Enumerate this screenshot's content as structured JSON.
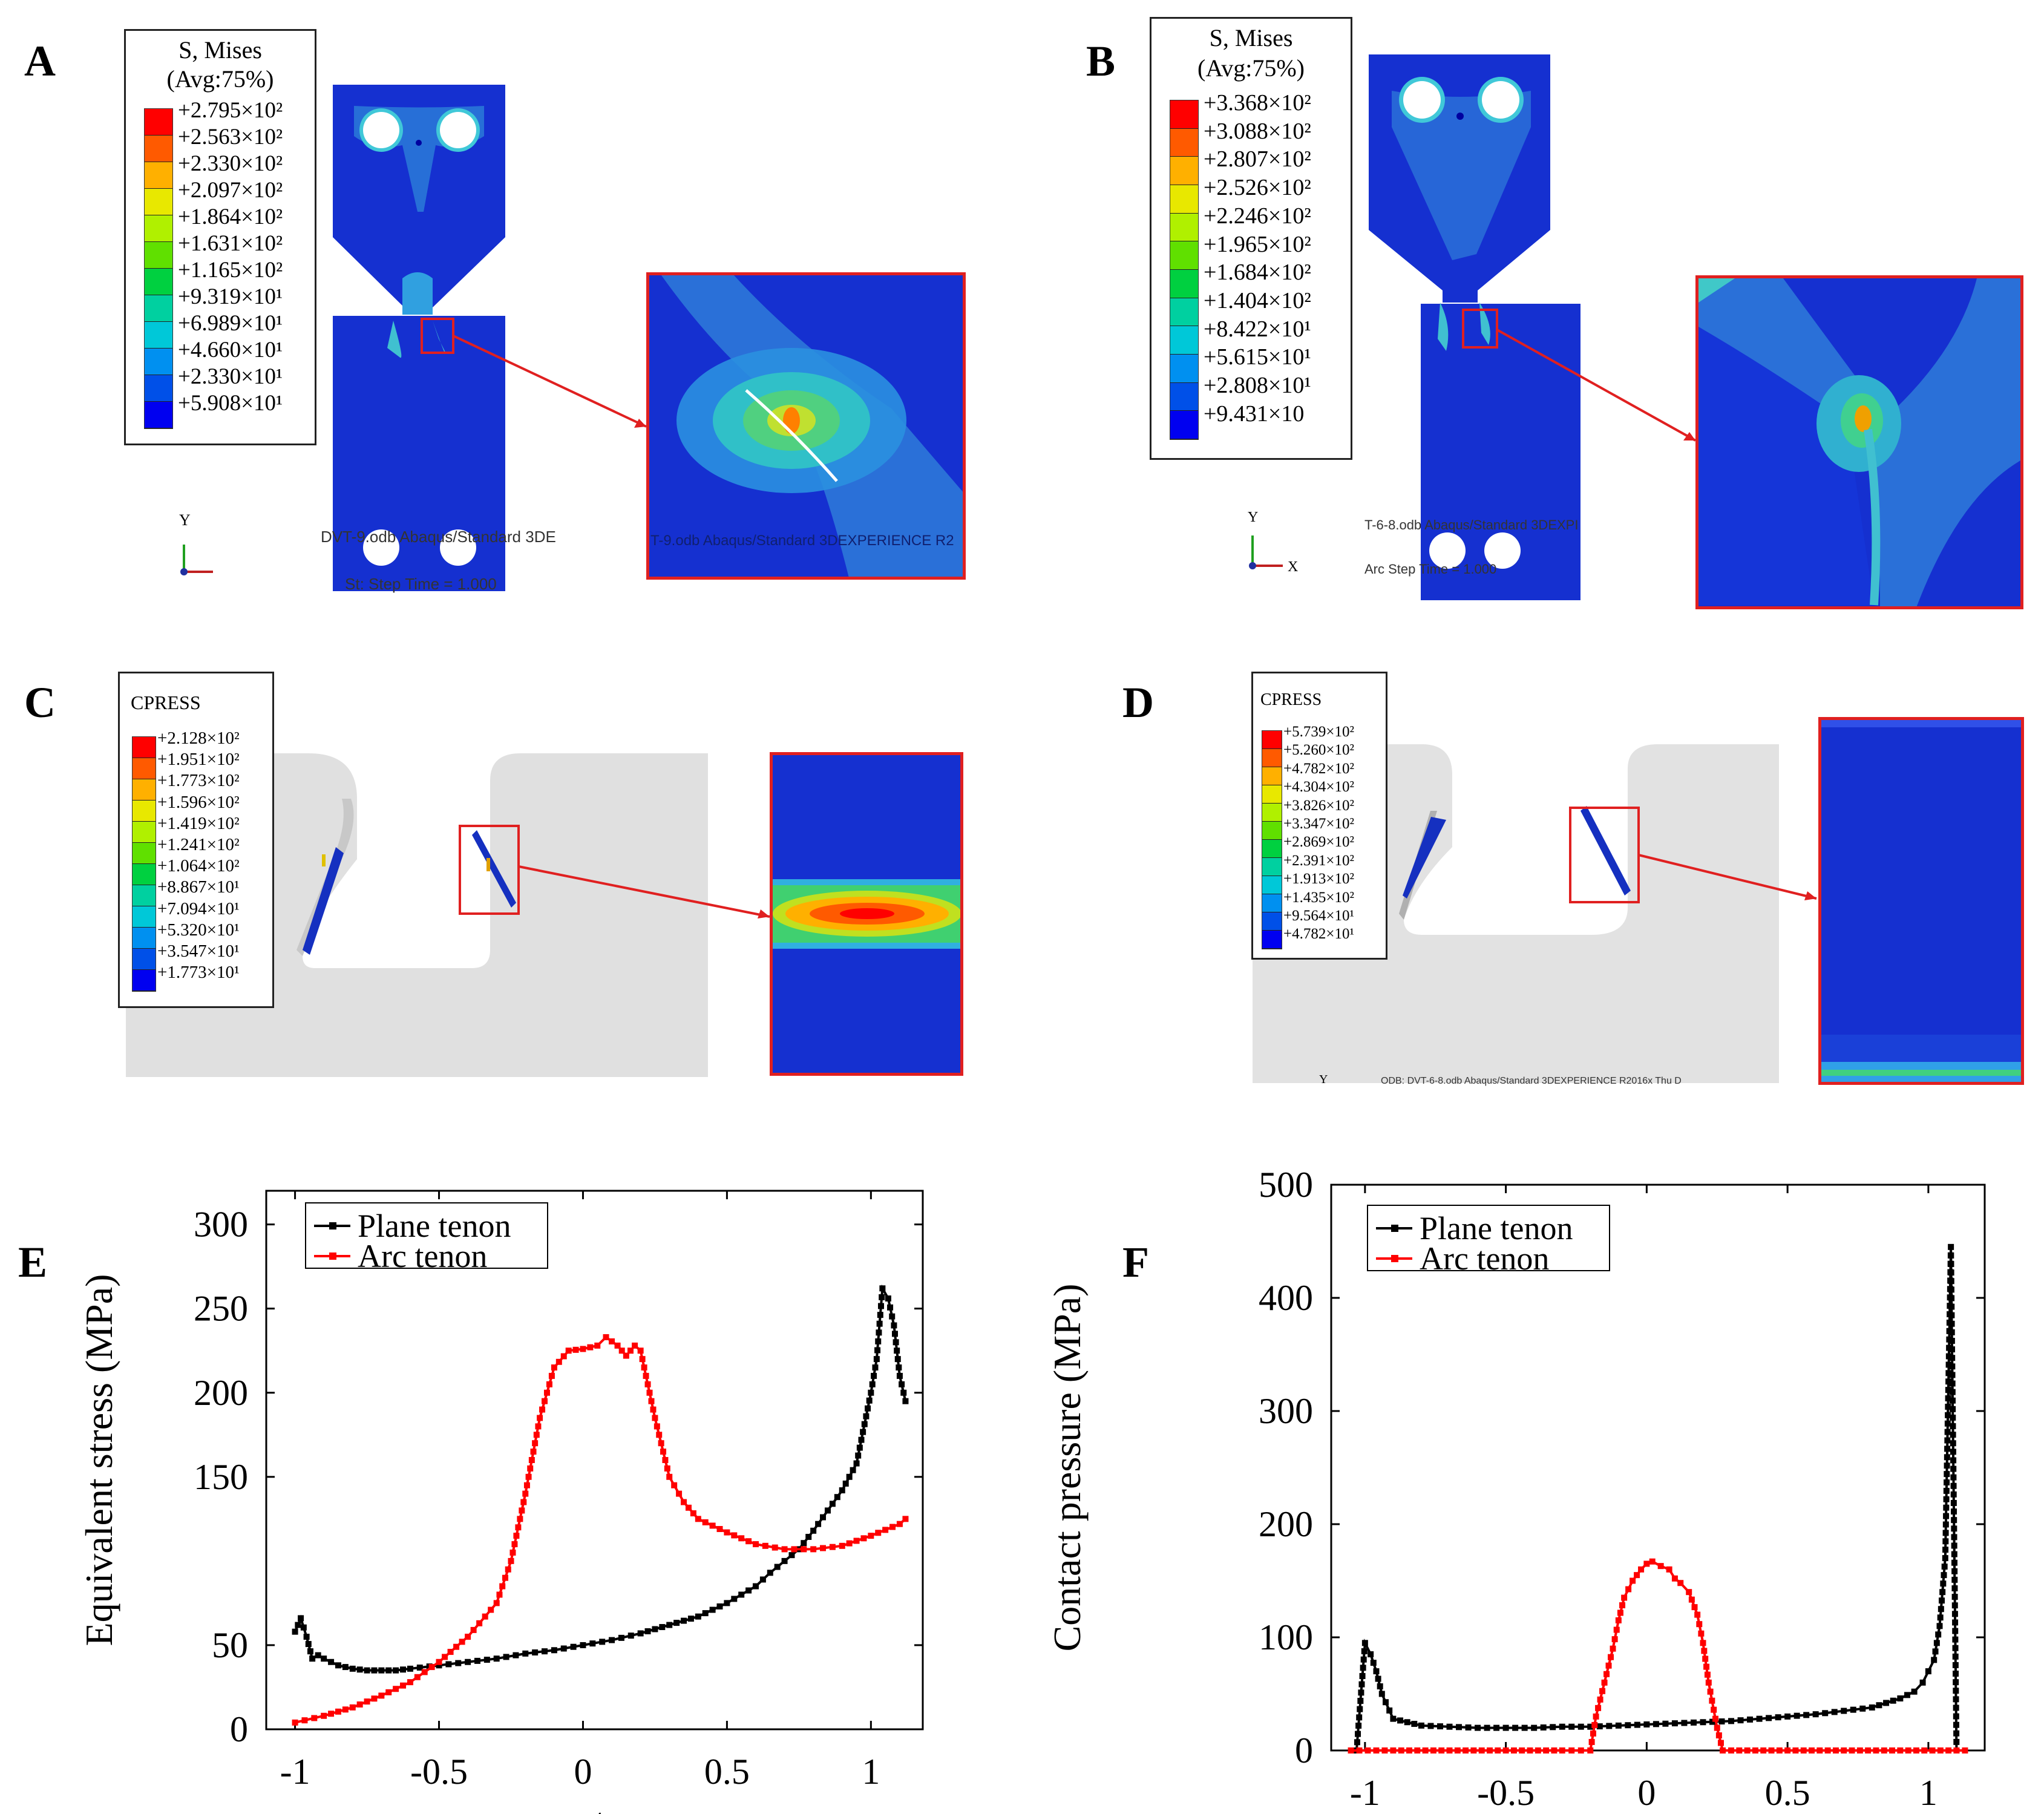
{
  "panels": {
    "A": {
      "label": "A",
      "legend_title_1": "S, Mises",
      "legend_title_2": "(Avg:75%)",
      "legend_values": [
        "+2.795×10²",
        "+2.563×10²",
        "+2.330×10²",
        "+2.097×10²",
        "+1.864×10²",
        "+1.631×10²",
        "+1.165×10²",
        "+9.319×10¹",
        "+6.989×10¹",
        "+4.660×10¹",
        "+2.330×10¹",
        "+5.908×10¹"
      ],
      "footer_1": "DVT-9.odb   Abaqus/Standard 3DE",
      "footer_2": "St: Step Time = 1.000",
      "zoom_footer": "T-9.odb   Abaqus/Standard 3DEXPERIENCE R2",
      "axis_y": "Y"
    },
    "B": {
      "label": "B",
      "legend_title_1": "S, Mises",
      "legend_title_2": "(Avg:75%)",
      "legend_values": [
        "+3.368×10²",
        "+3.088×10²",
        "+2.807×10²",
        "+2.526×10²",
        "+2.246×10²",
        "+1.965×10²",
        "+1.684×10²",
        "+1.404×10²",
        "+8.422×10¹",
        "+5.615×10¹",
        "+2.808×10¹",
        "+9.431×10"
      ],
      "footer_1": "T-6-8.odb   Abaqus/Standard 3DEXPI",
      "footer_2": "Arc Step Time = 1.000",
      "axis_y": "Y",
      "axis_x": "X"
    },
    "C": {
      "label": "C",
      "legend_title": "CPRESS",
      "legend_values": [
        "+2.128×10²",
        "+1.951×10²",
        "+1.773×10²",
        "+1.596×10²",
        "+1.419×10²",
        "+1.241×10²",
        "+1.064×10²",
        "+8.867×10¹",
        "+7.094×10¹",
        "+5.320×10¹",
        "+3.547×10¹",
        "+1.773×10¹"
      ]
    },
    "D": {
      "label": "D",
      "legend_title": "CPRESS",
      "legend_values": [
        "+5.739×10²",
        "+5.260×10²",
        "+4.782×10²",
        "+4.304×10²",
        "+3.826×10²",
        "+3.347×10²",
        "+2.869×10²",
        "+2.391×10²",
        "+1.913×10²",
        "+1.435×10²",
        "+9.564×10¹",
        "+4.782×10¹"
      ],
      "footer": "ODB: DVT-6-8.odb    Abaqus/Standard 3DEXPERIENCE R2016x    Thu D",
      "axis_y": "Y"
    },
    "E": {
      "label": "E"
    },
    "F": {
      "label": "F"
    }
  },
  "legend_colors_stress": [
    "#ff0000",
    "#ff5a00",
    "#ffb000",
    "#e8e800",
    "#b0f000",
    "#60e000",
    "#00d040",
    "#00d0a0",
    "#00c8d8",
    "#0090f0",
    "#0050e8",
    "#0000f0"
  ],
  "legend_colors_cpress": [
    "#ff0000",
    "#ff5a00",
    "#ffb000",
    "#e8e800",
    "#b0f000",
    "#60e000",
    "#00d040",
    "#00d0a0",
    "#00c8d8",
    "#0090f0",
    "#0050e8",
    "#0000f0"
  ],
  "chart_data": [
    {
      "type": "line",
      "panel": "E",
      "xlabel": "x/a",
      "ylabel": "Equivalent stress (MPa)",
      "xlim": [
        -1.1,
        1.18
      ],
      "ylim": [
        0,
        320
      ],
      "xticks": [
        -1,
        -0.5,
        0,
        0.5,
        1
      ],
      "xtick_labels": [
        "-1",
        "-0.5",
        "0",
        "0.5",
        "1"
      ],
      "yticks": [
        0,
        50,
        150,
        200,
        250,
        300
      ],
      "ytick_labels": [
        "0",
        "50",
        "150",
        "200",
        "250",
        "300"
      ],
      "legend": [
        "Plane tenon",
        "Arc tenon"
      ],
      "series": [
        {
          "name": "Plane tenon",
          "color": "#000000",
          "x": [
            -1.0,
            -0.98,
            -0.96,
            -0.94,
            -0.92,
            -0.9,
            -0.85,
            -0.8,
            -0.75,
            -0.7,
            -0.65,
            -0.6,
            -0.5,
            -0.4,
            -0.3,
            -0.2,
            -0.1,
            0.0,
            0.1,
            0.2,
            0.3,
            0.4,
            0.5,
            0.6,
            0.65,
            0.7,
            0.75,
            0.8,
            0.85,
            0.9,
            0.95,
            1.0,
            1.02,
            1.04,
            1.06,
            1.08,
            1.1,
            1.12
          ],
          "y": [
            58,
            66,
            55,
            42,
            44,
            42,
            38,
            36,
            35,
            35,
            35,
            36,
            38,
            40,
            42,
            45,
            47,
            50,
            53,
            57,
            62,
            67,
            75,
            85,
            93,
            100,
            107,
            118,
            130,
            142,
            158,
            200,
            220,
            262,
            256,
            240,
            210,
            195
          ]
        },
        {
          "name": "Arc tenon",
          "color": "#ff0000",
          "x": [
            -1.0,
            -0.9,
            -0.8,
            -0.7,
            -0.6,
            -0.5,
            -0.4,
            -0.3,
            -0.25,
            -0.2,
            -0.15,
            -0.1,
            -0.05,
            0.0,
            0.05,
            0.08,
            0.12,
            0.15,
            0.18,
            0.2,
            0.25,
            0.3,
            0.35,
            0.4,
            0.5,
            0.6,
            0.7,
            0.8,
            0.9,
            1.0,
            1.1,
            1.12
          ],
          "y": [
            4,
            8,
            13,
            20,
            28,
            40,
            55,
            75,
            100,
            140,
            185,
            215,
            225,
            226,
            228,
            233,
            228,
            222,
            228,
            225,
            185,
            150,
            135,
            125,
            117,
            110,
            107,
            107,
            109,
            115,
            122,
            125
          ]
        }
      ]
    },
    {
      "type": "line",
      "panel": "F",
      "xlabel": "x/a",
      "ylabel": "Contact pressure (MPa)",
      "xlim": [
        -1.12,
        1.2
      ],
      "ylim": [
        0,
        500
      ],
      "xticks": [
        -1,
        -0.5,
        0,
        0.5,
        1
      ],
      "xtick_labels": [
        "-1",
        "-0.5",
        "0",
        "0.5",
        "1"
      ],
      "yticks": [
        0,
        100,
        200,
        300,
        400,
        500
      ],
      "ytick_labels": [
        "0",
        "100",
        "200",
        "300",
        "400",
        "500"
      ],
      "legend": [
        "Plane tenon",
        "Arc tenon"
      ],
      "series": [
        {
          "name": "Plane tenon",
          "color": "#000000",
          "x": [
            -1.03,
            -1.0,
            -0.98,
            -0.96,
            -0.94,
            -0.9,
            -0.85,
            -0.8,
            -0.7,
            -0.6,
            -0.5,
            -0.4,
            -0.3,
            -0.2,
            -0.1,
            0.0,
            0.1,
            0.2,
            0.3,
            0.4,
            0.5,
            0.6,
            0.7,
            0.8,
            0.85,
            0.9,
            0.95,
            0.98,
            1.0,
            1.02,
            1.04,
            1.06,
            1.08,
            1.1
          ],
          "y": [
            0,
            95,
            85,
            70,
            50,
            28,
            25,
            22,
            21,
            20,
            20,
            20,
            21,
            21,
            22,
            23,
            24,
            25,
            26,
            28,
            30,
            32,
            35,
            38,
            42,
            46,
            52,
            60,
            70,
            80,
            110,
            170,
            445,
            0
          ]
        },
        {
          "name": "Arc tenon",
          "color": "#ff0000",
          "x": [
            -1.05,
            -0.9,
            -0.7,
            -0.5,
            -0.3,
            -0.2,
            -0.18,
            -0.15,
            -0.12,
            -0.1,
            -0.08,
            -0.05,
            -0.02,
            0.0,
            0.02,
            0.05,
            0.08,
            0.1,
            0.12,
            0.15,
            0.18,
            0.2,
            0.22,
            0.25,
            0.27,
            0.3,
            0.5,
            0.7,
            0.9,
            1.1,
            1.13
          ],
          "y": [
            0,
            0,
            0,
            0,
            0,
            0,
            30,
            60,
            90,
            115,
            135,
            150,
            160,
            165,
            167,
            163,
            160,
            152,
            148,
            140,
            120,
            95,
            60,
            20,
            0,
            0,
            0,
            0,
            0,
            0,
            0
          ]
        }
      ]
    }
  ]
}
